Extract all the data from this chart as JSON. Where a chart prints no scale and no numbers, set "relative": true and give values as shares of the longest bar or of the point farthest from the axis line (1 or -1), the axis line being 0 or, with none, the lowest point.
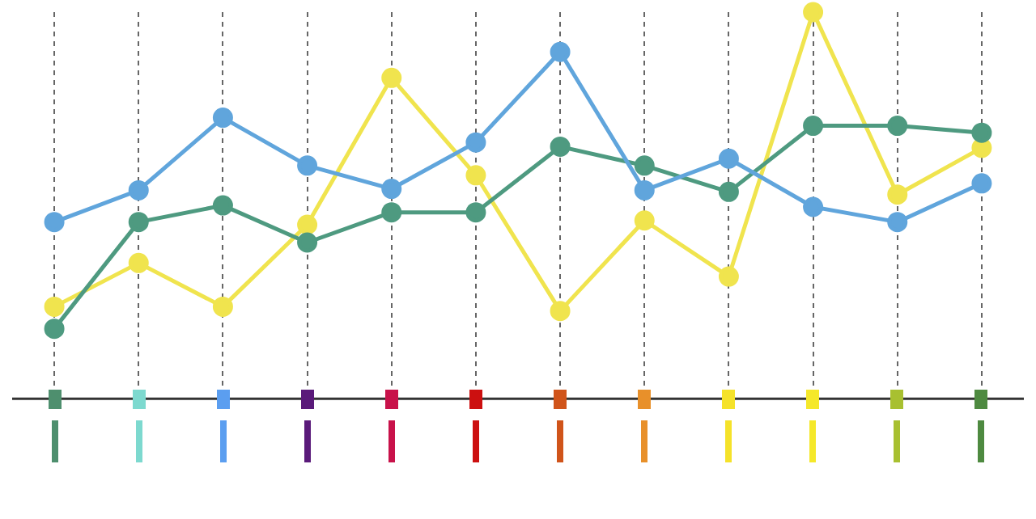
{
  "chart_data": {
    "type": "line",
    "relative": true,
    "categories": [
      null,
      null,
      null,
      null,
      null,
      null,
      null,
      null,
      null,
      null,
      null,
      null
    ],
    "series": [
      {
        "color": "#60a5dc",
        "values": [
          0.457,
          0.539,
          0.727,
          0.603,
          0.543,
          0.663,
          0.897,
          0.539,
          0.621,
          0.496,
          0.457,
          0.557
        ]
      },
      {
        "color": "#4e9a80",
        "values": [
          0.181,
          0.457,
          0.5,
          0.404,
          0.482,
          0.482,
          0.652,
          0.603,
          0.535,
          0.706,
          0.706,
          0.688
        ]
      },
      {
        "color": "#f0e44e",
        "values": [
          0.238,
          0.351,
          0.238,
          0.45,
          0.83,
          0.578,
          0.227,
          0.461,
          0.316,
          1,
          0.528,
          0.649
        ]
      }
    ],
    "grid": "x",
    "marker": "circle",
    "line_style": "solid",
    "legend": false
  }
}
